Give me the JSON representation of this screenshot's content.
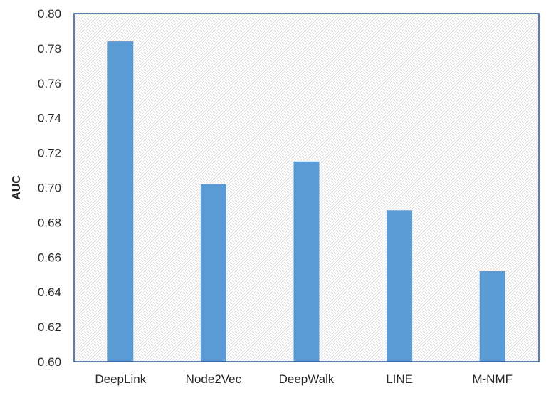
{
  "chart_data": {
    "type": "bar",
    "title": "",
    "xlabel": "",
    "ylabel": "AUC",
    "categories": [
      "DeepLink",
      "Node2Vec",
      "DeepWalk",
      "LINE",
      "M-NMF"
    ],
    "series": [
      {
        "values": [
          0.784,
          0.702,
          0.715,
          0.687,
          0.652
        ]
      }
    ],
    "ylim": [
      0.6,
      0.8
    ],
    "yticks": [
      "0.60",
      "0.62",
      "0.64",
      "0.66",
      "0.68",
      "0.70",
      "0.72",
      "0.74",
      "0.76",
      "0.78",
      "0.80"
    ],
    "grid": false,
    "legend": "none",
    "plot_background": "diagonal hatch",
    "colors": {
      "bar": "#5B9BD5",
      "frame": "#2F5597",
      "hatch": "#cfcfcf",
      "text": "#262626"
    }
  }
}
